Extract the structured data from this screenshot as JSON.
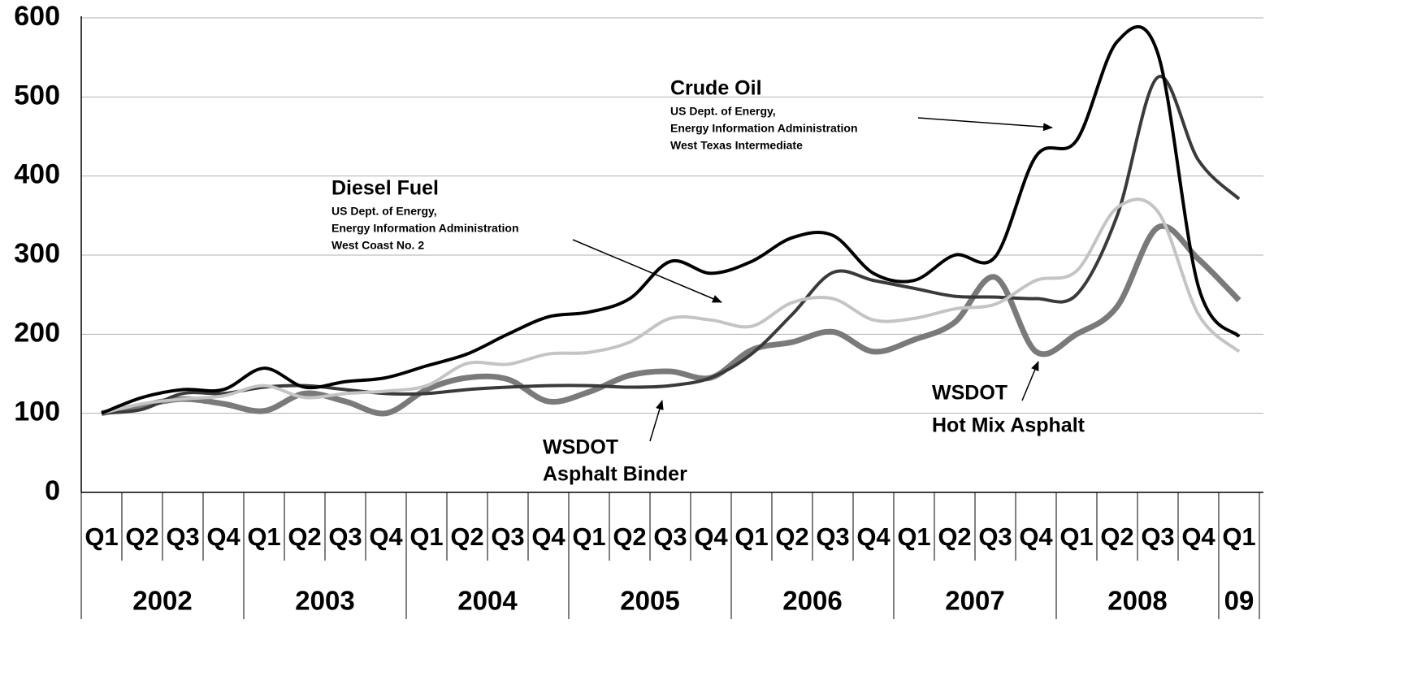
{
  "chart_data": {
    "type": "line",
    "categories": [
      "Q1",
      "Q2",
      "Q3",
      "Q4",
      "Q1",
      "Q2",
      "Q3",
      "Q4",
      "Q1",
      "Q2",
      "Q3",
      "Q4",
      "Q1",
      "Q2",
      "Q3",
      "Q4",
      "Q1",
      "Q2",
      "Q3",
      "Q4",
      "Q1",
      "Q2",
      "Q3",
      "Q4",
      "Q1",
      "Q2",
      "Q3",
      "Q4",
      "Q1"
    ],
    "year_labels": [
      "2002",
      "2003",
      "2004",
      "2005",
      "2006",
      "2007",
      "2008",
      "09"
    ],
    "ylim": [
      0,
      600
    ],
    "yticks": [
      0,
      100,
      200,
      300,
      400,
      500,
      600
    ],
    "grid": true,
    "series": [
      {
        "name": "Crude Oil",
        "color": "#000000",
        "note": [
          "US Dept. of Energy,",
          "Energy Information Administration",
          "West Texas Intermediate"
        ],
        "values": [
          100,
          120,
          130,
          130,
          157,
          133,
          140,
          145,
          160,
          175,
          200,
          222,
          228,
          245,
          292,
          277,
          292,
          322,
          325,
          277,
          268,
          300,
          298,
          425,
          445,
          570,
          555,
          260,
          197
        ]
      },
      {
        "name": "Diesel Fuel",
        "color": "#c4c4c4",
        "note": [
          "US Dept. of Energy,",
          "Energy Information Administration",
          "West Coast No. 2"
        ],
        "values": [
          100,
          112,
          118,
          122,
          135,
          120,
          125,
          128,
          135,
          163,
          162,
          175,
          177,
          190,
          220,
          218,
          210,
          240,
          245,
          218,
          220,
          232,
          238,
          268,
          280,
          360,
          355,
          225,
          178
        ]
      },
      {
        "name": "Asphalt Binder",
        "color": "#3a3a3a",
        "prefix": "WSDOT",
        "values": [
          100,
          105,
          125,
          125,
          133,
          135,
          130,
          125,
          125,
          130,
          133,
          135,
          135,
          133,
          135,
          145,
          175,
          225,
          278,
          268,
          258,
          248,
          247,
          245,
          250,
          350,
          525,
          420,
          371
        ]
      },
      {
        "name": "Hot Mix Asphalt",
        "color": "#7a7a7a",
        "prefix": "WSDOT",
        "values": [
          100,
          110,
          118,
          112,
          103,
          125,
          115,
          100,
          130,
          145,
          143,
          115,
          127,
          148,
          153,
          145,
          180,
          190,
          203,
          178,
          193,
          215,
          272,
          178,
          200,
          235,
          335,
          295,
          243
        ]
      }
    ]
  }
}
